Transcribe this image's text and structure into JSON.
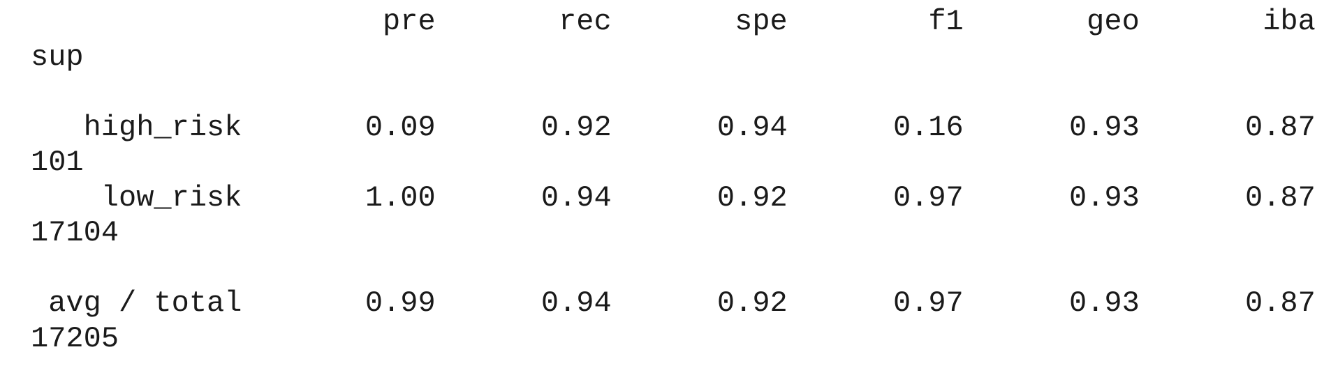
{
  "report": {
    "headers": [
      "pre",
      "rec",
      "spe",
      "f1",
      "geo",
      "iba",
      "sup"
    ],
    "rows": [
      {
        "label": "high_risk",
        "values": [
          "0.09",
          "0.92",
          "0.94",
          "0.16",
          "0.93",
          "0.87"
        ],
        "support": "101"
      },
      {
        "label": "low_risk",
        "values": [
          "1.00",
          "0.94",
          "0.92",
          "0.97",
          "0.93",
          "0.87"
        ],
        "support": "17104"
      }
    ],
    "total": {
      "label": "avg / total",
      "values": [
        "0.99",
        "0.94",
        "0.92",
        "0.97",
        "0.93",
        "0.87"
      ],
      "support": "17205"
    }
  }
}
